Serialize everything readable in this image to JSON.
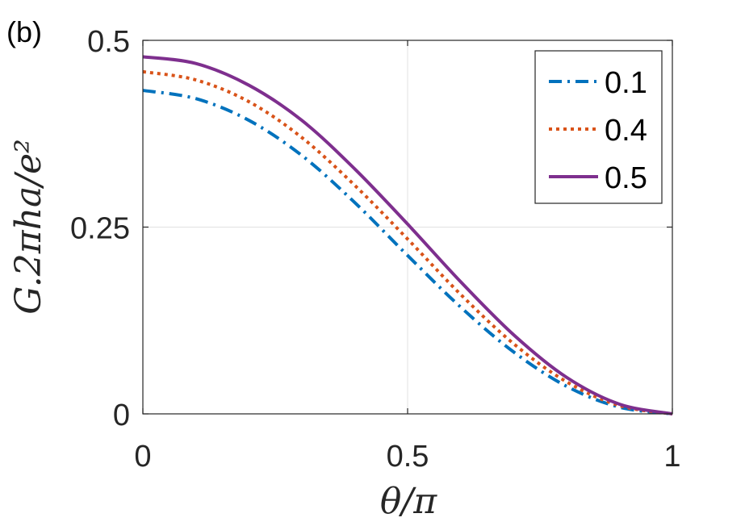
{
  "panel_label": "(b)",
  "chart_data": {
    "type": "line",
    "title": "",
    "xlabel": "θ/π",
    "ylabel": "G.2πha/e²",
    "xlim": [
      0,
      1
    ],
    "ylim": [
      0,
      0.5
    ],
    "xticks": [
      0,
      0.5,
      1
    ],
    "xtick_labels": [
      "0",
      "0.5",
      "1"
    ],
    "yticks": [
      0,
      0.25,
      0.5
    ],
    "ytick_labels": [
      "0",
      "0.25",
      "0.5"
    ],
    "grid": true,
    "legend_position": "top-right",
    "series": [
      {
        "name": "0.1",
        "color": "#0072BD",
        "style": "dash-dot",
        "x": [
          0,
          0.1,
          0.2,
          0.3,
          0.4,
          0.5,
          0.6,
          0.7,
          0.8,
          0.9,
          1.0
        ],
        "y": [
          0.433,
          0.422,
          0.393,
          0.346,
          0.283,
          0.212,
          0.143,
          0.083,
          0.037,
          0.009,
          0.0
        ]
      },
      {
        "name": "0.4",
        "color": "#D95319",
        "style": "dotted",
        "x": [
          0,
          0.1,
          0.2,
          0.3,
          0.4,
          0.5,
          0.6,
          0.7,
          0.8,
          0.9,
          1.0
        ],
        "y": [
          0.458,
          0.447,
          0.418,
          0.37,
          0.306,
          0.234,
          0.16,
          0.094,
          0.043,
          0.011,
          0.0
        ]
      },
      {
        "name": "0.5",
        "color": "#7E2F8E",
        "style": "solid",
        "x": [
          0,
          0.1,
          0.2,
          0.3,
          0.4,
          0.5,
          0.6,
          0.7,
          0.8,
          0.9,
          1.0
        ],
        "y": [
          0.478,
          0.469,
          0.44,
          0.393,
          0.328,
          0.254,
          0.177,
          0.106,
          0.049,
          0.013,
          0.0
        ]
      }
    ]
  }
}
